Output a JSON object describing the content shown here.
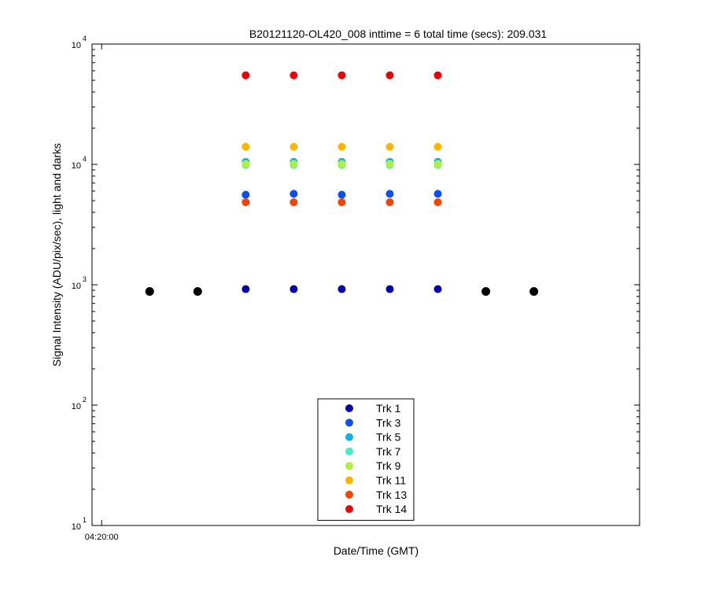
{
  "chart_data": {
    "type": "scatter",
    "title": "B20121120-OL420_008 inttime = 6 total time (secs): 209.031",
    "xlabel": "Date/Time (GMT)",
    "ylabel": "Signal Intensity (ADU/pix/sec), light and darks",
    "yscale": "log",
    "ylim": [
      1,
      10000
    ],
    "y_ticks": [
      {
        "base": "10",
        "exp": "1",
        "value": 1
      },
      {
        "base": "10",
        "exp": "2",
        "value": 10
      },
      {
        "base": "10",
        "exp": "3",
        "value": 100
      },
      {
        "base": "10",
        "exp": "4",
        "value": 1000
      }
    ],
    "top_exponent": "4",
    "x_ticks": [
      {
        "label": "04:20:00",
        "value": 0
      }
    ],
    "xlim": [
      -0.2,
      11.2
    ],
    "grid": false,
    "legend_position": "bottom-center",
    "series": [
      {
        "name": "Trk 1",
        "color": "#0000b0",
        "x": [
          3,
          4,
          5,
          6,
          7
        ],
        "y": [
          92,
          92,
          92,
          92,
          92
        ]
      },
      {
        "name": "Trk 3",
        "color": "#0a50f0",
        "x": [
          3,
          4,
          5,
          6,
          7
        ],
        "y": [
          560,
          570,
          560,
          570,
          570
        ]
      },
      {
        "name": "Trk 5",
        "color": "#00b4f0",
        "x": [
          3,
          4,
          5,
          6,
          7
        ],
        "y": [
          1050,
          1050,
          1050,
          1050,
          1050
        ]
      },
      {
        "name": "Trk 7",
        "color": "#40f0c8",
        "x": [
          3,
          4,
          5,
          6,
          7
        ],
        "y": [
          990,
          990,
          990,
          990,
          990
        ]
      },
      {
        "name": "Trk 9",
        "color": "#b0f040",
        "x": [
          3,
          4,
          5,
          6,
          7
        ],
        "y": [
          1010,
          1010,
          1010,
          1010,
          1010
        ]
      },
      {
        "name": "Trk 11",
        "color": "#ffb400",
        "x": [
          3,
          4,
          5,
          6,
          7
        ],
        "y": [
          1400,
          1400,
          1400,
          1400,
          1400
        ]
      },
      {
        "name": "Trk 13",
        "color": "#f04600",
        "x": [
          3,
          4,
          5,
          6,
          7
        ],
        "y": [
          485,
          485,
          485,
          485,
          485
        ]
      },
      {
        "name": "Trk 14",
        "color": "#f00000",
        "x": [
          3,
          4,
          5,
          6,
          7
        ],
        "y": [
          5500,
          5500,
          5500,
          5500,
          5500
        ]
      }
    ],
    "darks": {
      "color": "#000000",
      "x": [
        1,
        2,
        8,
        9
      ],
      "y": [
        88,
        88,
        88,
        88
      ]
    }
  }
}
